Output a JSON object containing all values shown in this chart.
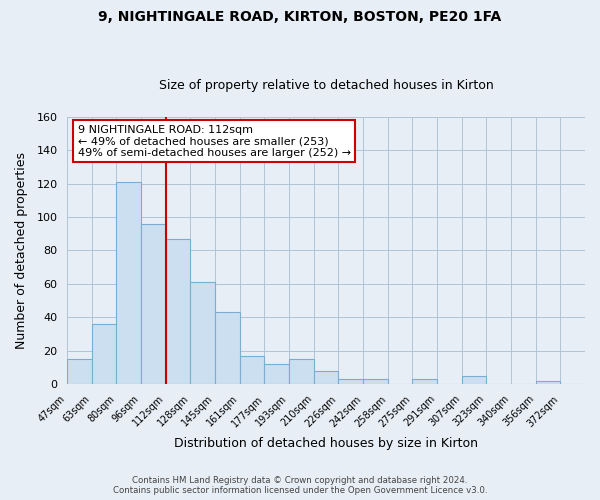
{
  "title": "9, NIGHTINGALE ROAD, KIRTON, BOSTON, PE20 1FA",
  "subtitle": "Size of property relative to detached houses in Kirton",
  "xlabel": "Distribution of detached houses by size in Kirton",
  "ylabel": "Number of detached properties",
  "bin_labels": [
    "47sqm",
    "63sqm",
    "80sqm",
    "96sqm",
    "112sqm",
    "128sqm",
    "145sqm",
    "161sqm",
    "177sqm",
    "193sqm",
    "210sqm",
    "226sqm",
    "242sqm",
    "258sqm",
    "275sqm",
    "291sqm",
    "307sqm",
    "323sqm",
    "340sqm",
    "356sqm",
    "372sqm"
  ],
  "bar_values": [
    15,
    36,
    121,
    96,
    87,
    61,
    43,
    17,
    12,
    15,
    8,
    3,
    3,
    0,
    3,
    0,
    5,
    0,
    0,
    2,
    0
  ],
  "bar_fill_color": "#ccdff0",
  "bar_edge_color": "#7aaed0",
  "vline_color": "#cc0000",
  "annotation_text": "9 NIGHTINGALE ROAD: 112sqm\n← 49% of detached houses are smaller (253)\n49% of semi-detached houses are larger (252) →",
  "annotation_box_edgecolor": "#cc0000",
  "annotation_box_facecolor": "#ffffff",
  "ylim": [
    0,
    160
  ],
  "yticks": [
    0,
    20,
    40,
    60,
    80,
    100,
    120,
    140,
    160
  ],
  "footer1": "Contains HM Land Registry data © Crown copyright and database right 2024.",
  "footer2": "Contains public sector information licensed under the Open Government Licence v3.0.",
  "background_color": "#e8eef5",
  "plot_bg_color": "#e8eef5",
  "grid_color": "#b0c4d8",
  "title_fontsize": 10,
  "subtitle_fontsize": 9
}
